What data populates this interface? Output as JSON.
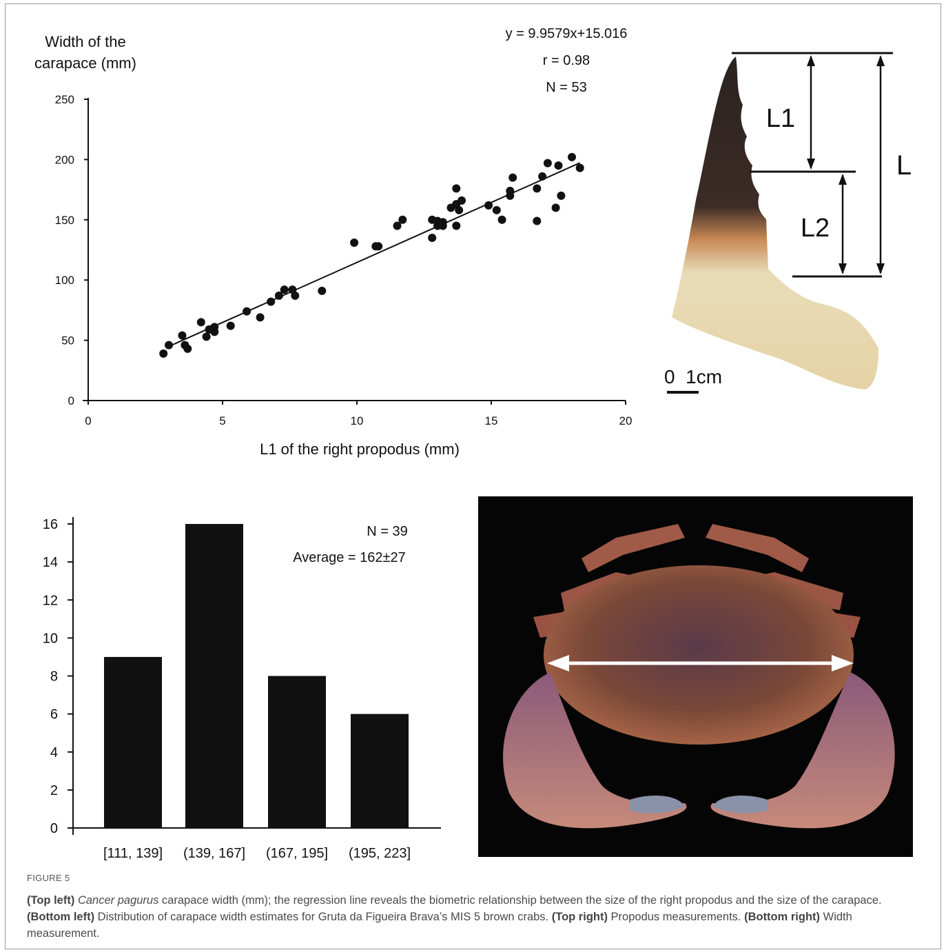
{
  "chart_data": [
    {
      "type": "scatter",
      "ylabel_lines": [
        "Width of the",
        "carapace (mm)"
      ],
      "xlabel": "L1 of the right propodus (mm)",
      "xlim": [
        0,
        20
      ],
      "ylim": [
        0,
        250
      ],
      "x_ticks": [
        0,
        5,
        10,
        15,
        20
      ],
      "y_ticks": [
        0,
        50,
        100,
        150,
        200,
        250
      ],
      "annotations": [
        "y = 9.9579x+15.016",
        "r = 0.98",
        "N = 53"
      ],
      "regression": {
        "slope": 9.9579,
        "intercept": 15.016,
        "x_range": [
          2.9,
          18.3
        ]
      },
      "points": [
        [
          2.8,
          39
        ],
        [
          3.0,
          46
        ],
        [
          3.5,
          54
        ],
        [
          3.6,
          46
        ],
        [
          3.7,
          43
        ],
        [
          4.2,
          65
        ],
        [
          4.4,
          53
        ],
        [
          4.5,
          59
        ],
        [
          4.7,
          57
        ],
        [
          4.7,
          61
        ],
        [
          5.3,
          62
        ],
        [
          5.9,
          74
        ],
        [
          6.4,
          69
        ],
        [
          6.8,
          82
        ],
        [
          7.1,
          87
        ],
        [
          7.3,
          92
        ],
        [
          7.6,
          92
        ],
        [
          7.7,
          87
        ],
        [
          8.7,
          91
        ],
        [
          9.9,
          131
        ],
        [
          10.7,
          128
        ],
        [
          10.8,
          128
        ],
        [
          11.5,
          145
        ],
        [
          11.7,
          150
        ],
        [
          12.8,
          135
        ],
        [
          12.8,
          150
        ],
        [
          13.0,
          145
        ],
        [
          13.0,
          149
        ],
        [
          13.2,
          145
        ],
        [
          13.2,
          148
        ],
        [
          13.5,
          160
        ],
        [
          13.7,
          163
        ],
        [
          13.7,
          145
        ],
        [
          13.7,
          176
        ],
        [
          13.8,
          158
        ],
        [
          13.9,
          166
        ],
        [
          14.9,
          162
        ],
        [
          15.2,
          158
        ],
        [
          15.4,
          150
        ],
        [
          15.7,
          170
        ],
        [
          15.7,
          174
        ],
        [
          15.8,
          185
        ],
        [
          16.7,
          149
        ],
        [
          16.7,
          176
        ],
        [
          16.9,
          186
        ],
        [
          17.1,
          197
        ],
        [
          17.4,
          160
        ],
        [
          17.5,
          195
        ],
        [
          17.6,
          170
        ],
        [
          18.0,
          202
        ],
        [
          18.3,
          193
        ]
      ]
    },
    {
      "type": "bar",
      "categories": [
        "[111, 139]",
        "(139, 167]",
        "(167, 195]",
        "(195, 223]"
      ],
      "values": [
        9,
        16,
        8,
        6
      ],
      "ylim": [
        0,
        16
      ],
      "y_ticks": [
        0,
        2,
        4,
        6,
        8,
        10,
        12,
        14,
        16
      ],
      "annotations": [
        "N = 39",
        "Average = 162±27"
      ]
    }
  ],
  "propodus_figure": {
    "labels": [
      "L1",
      "L2",
      "L"
    ],
    "scale_label": "0  1cm"
  },
  "caption": {
    "figure_label": "FIGURE 5",
    "top_left_label": "(Top left)",
    "species": "Cancer pagurus",
    "top_left_text": " carapace width (mm); the regression line reveals the biometric relationship between the size of the right propodus and the size of the carapace. ",
    "bottom_left_label": "(Bottom left)",
    "bottom_left_text": " Distribution of carapace width estimates for Gruta da Figueira Brava’s MIS 5 brown crabs. ",
    "top_right_label": "(Top right)",
    "top_right_text": " Propodus measurements. ",
    "bottom_right_label": "(Bottom right)",
    "bottom_right_text": " Width measurement."
  }
}
